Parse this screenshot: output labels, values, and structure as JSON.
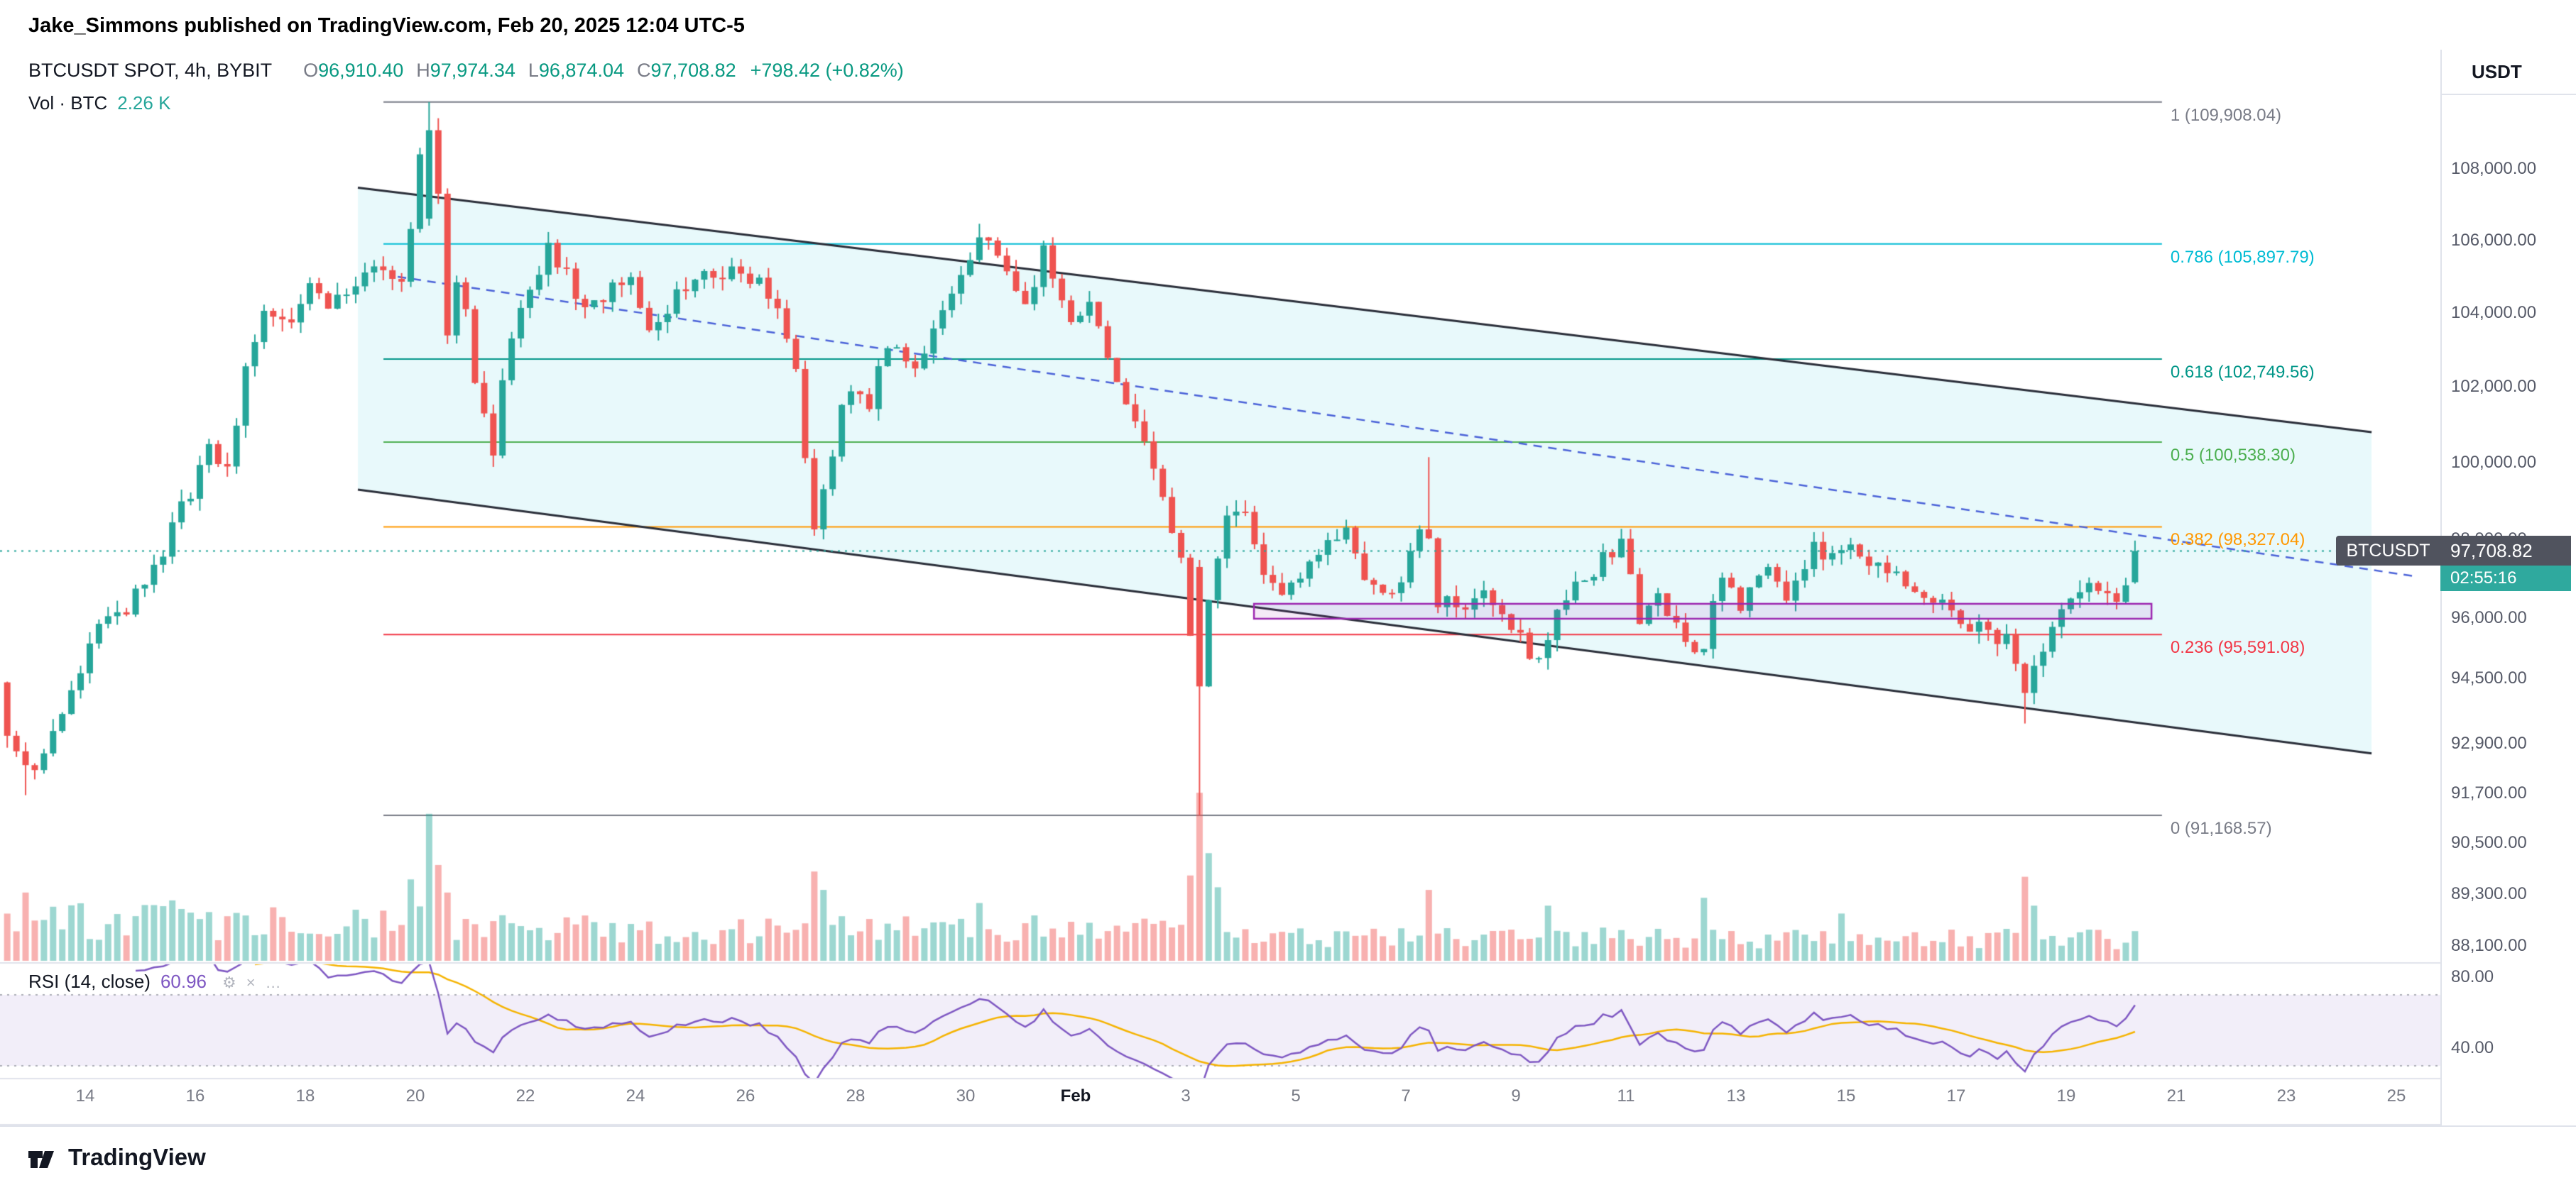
{
  "header": {
    "attribution": "Jake_Simmons published on TradingView.com, Feb 20, 2025 12:04 UTC-5"
  },
  "footer": {
    "brand": "TradingView"
  },
  "axis_panel": {
    "currency": "USDT"
  },
  "legend": {
    "symbol": "BTCUSDT SPOT, 4h, BYBIT",
    "ohlc": [
      {
        "k": "O",
        "v": "96,910.40"
      },
      {
        "k": "H",
        "v": "97,974.34"
      },
      {
        "k": "L",
        "v": "96,874.04"
      },
      {
        "k": "C",
        "v": "97,708.82"
      }
    ],
    "change": "+798.42 (+0.82%)",
    "volume_label": "Vol · BTC",
    "volume_value": "2.26 K"
  },
  "rsi_legend": {
    "label": "RSI (14, close)",
    "value": "60.96"
  },
  "price_badge": {
    "symbol": "BTCUSDT",
    "price": "97,708.82",
    "countdown": "02:55:16"
  },
  "chart_data": {
    "type": "candlestick",
    "symbol": "BTCUSDT",
    "market": "SPOT",
    "exchange": "BYBIT",
    "interval": "4h",
    "scale": "log",
    "last_candle": {
      "open": 96910.4,
      "high": 97974.34,
      "low": 96874.04,
      "close": 97708.82,
      "change": 798.42,
      "change_pct": 0.82
    },
    "last_volume_btc": 2260,
    "rsi_value": 60.96,
    "price_axis_ticks": [
      {
        "label": "108,000.00",
        "value": 108000
      },
      {
        "label": "106,000.00",
        "value": 106000
      },
      {
        "label": "104,000.00",
        "value": 104000
      },
      {
        "label": "102,000.00",
        "value": 102000
      },
      {
        "label": "100,000.00",
        "value": 100000
      },
      {
        "label": "98,000.00",
        "value": 98000
      },
      {
        "label": "96,000.00",
        "value": 96000
      },
      {
        "label": "94,500.00",
        "value": 94500
      },
      {
        "label": "92,900.00",
        "value": 92900
      },
      {
        "label": "91,700.00",
        "value": 91700
      },
      {
        "label": "90,500.00",
        "value": 90500
      },
      {
        "label": "89,300.00",
        "value": 89300
      },
      {
        "label": "88,100.00",
        "value": 88100
      }
    ],
    "rsi_axis_ticks": [
      {
        "label": "80.00",
        "value": 80
      },
      {
        "label": "40.00",
        "value": 40
      }
    ],
    "date_ticks": [
      {
        "label": "14",
        "day": 1
      },
      {
        "label": "16",
        "day": 3
      },
      {
        "label": "18",
        "day": 5
      },
      {
        "label": "20",
        "day": 7
      },
      {
        "label": "22",
        "day": 9
      },
      {
        "label": "24",
        "day": 11
      },
      {
        "label": "26",
        "day": 13
      },
      {
        "label": "28",
        "day": 15
      },
      {
        "label": "30",
        "day": 17
      },
      {
        "label": "Feb",
        "day": 19,
        "emphasis": true
      },
      {
        "label": "3",
        "day": 21
      },
      {
        "label": "5",
        "day": 23
      },
      {
        "label": "7",
        "day": 25
      },
      {
        "label": "9",
        "day": 27
      },
      {
        "label": "11",
        "day": 29
      },
      {
        "label": "13",
        "day": 31
      },
      {
        "label": "15",
        "day": 33
      },
      {
        "label": "17",
        "day": 35
      },
      {
        "label": "19",
        "day": 37
      },
      {
        "label": "21",
        "day": 39
      },
      {
        "label": "23",
        "day": 41
      },
      {
        "label": "25",
        "day": 43
      }
    ],
    "fib_levels": [
      {
        "label": "1 (109,908.04)",
        "ratio": 1,
        "price": 109908.04,
        "color": "#787b86"
      },
      {
        "label": "0.786 (105,897.79)",
        "ratio": 0.786,
        "price": 105897.79,
        "color": "#00bcd4"
      },
      {
        "label": "0.618 (102,749.56)",
        "ratio": 0.618,
        "price": 102749.56,
        "color": "#009688"
      },
      {
        "label": "0.5 (100,538.30)",
        "ratio": 0.5,
        "price": 100538.3,
        "color": "#4caf50"
      },
      {
        "label": "0.382 (98,327.04)",
        "ratio": 0.382,
        "price": 98327.04,
        "color": "#ff9800"
      },
      {
        "label": "0.236 (95,591.08)",
        "ratio": 0.236,
        "price": 95591.08,
        "color": "#f23645"
      },
      {
        "label": "0 (91,168.57)",
        "ratio": 0,
        "price": 91168.57,
        "color": "#787b86"
      }
    ],
    "close_anchors": [
      [
        -0.5,
        94400
      ],
      [
        -0.3,
        93100
      ],
      [
        -0.1,
        92500
      ],
      [
        0.1,
        92200
      ],
      [
        0.3,
        92700
      ],
      [
        0.6,
        93600
      ],
      [
        1,
        94600
      ],
      [
        1.4,
        96300
      ],
      [
        1.8,
        96100
      ],
      [
        2.2,
        97000
      ],
      [
        2.6,
        98000
      ],
      [
        3,
        99300
      ],
      [
        3.3,
        100400
      ],
      [
        3.6,
        99700
      ],
      [
        4,
        102300
      ],
      [
        4.4,
        104100
      ],
      [
        4.8,
        103500
      ],
      [
        5.2,
        104900
      ],
      [
        5.6,
        104200
      ],
      [
        6,
        104800
      ],
      [
        6.4,
        105500
      ],
      [
        6.8,
        104700
      ],
      [
        7.05,
        106400
      ],
      [
        7.2,
        109100
      ],
      [
        7.35,
        107300
      ],
      [
        7.6,
        102900
      ],
      [
        7.9,
        105100
      ],
      [
        8.2,
        101800
      ],
      [
        8.5,
        100400
      ],
      [
        8.8,
        103300
      ],
      [
        9.2,
        104700
      ],
      [
        9.5,
        105900
      ],
      [
        9.8,
        105100
      ],
      [
        10.2,
        103900
      ],
      [
        10.6,
        104700
      ],
      [
        11,
        105200
      ],
      [
        11.3,
        103500
      ],
      [
        11.7,
        104200
      ],
      [
        12,
        104800
      ],
      [
        12.5,
        105100
      ],
      [
        13,
        105300
      ],
      [
        13.6,
        104300
      ],
      [
        14,
        102400
      ],
      [
        14.3,
        98200
      ],
      [
        14.6,
        99900
      ],
      [
        14.9,
        101900
      ],
      [
        15.3,
        101400
      ],
      [
        15.7,
        103200
      ],
      [
        16.1,
        102400
      ],
      [
        16.5,
        103600
      ],
      [
        17,
        104900
      ],
      [
        17.4,
        106000
      ],
      [
        17.8,
        105100
      ],
      [
        18.2,
        104300
      ],
      [
        18.5,
        105800
      ],
      [
        18.9,
        103900
      ],
      [
        19.3,
        104200
      ],
      [
        19.7,
        102700
      ],
      [
        20.1,
        101200
      ],
      [
        20.6,
        99300
      ],
      [
        21,
        97500
      ],
      [
        21.25,
        94300
      ],
      [
        21.55,
        96900
      ],
      [
        21.85,
        98600
      ],
      [
        22.1,
        98800
      ],
      [
        22.45,
        97200
      ],
      [
        22.8,
        96500
      ],
      [
        23.2,
        96900
      ],
      [
        23.6,
        97800
      ],
      [
        24,
        98400
      ],
      [
        24.35,
        97100
      ],
      [
        24.7,
        96500
      ],
      [
        25.1,
        97300
      ],
      [
        25.4,
        98800
      ],
      [
        25.65,
        96400
      ],
      [
        26,
        96300
      ],
      [
        26.5,
        96700
      ],
      [
        27,
        95900
      ],
      [
        27.4,
        94900
      ],
      [
        27.8,
        95900
      ],
      [
        28.2,
        96800
      ],
      [
        28.6,
        97400
      ],
      [
        29,
        97800
      ],
      [
        29.35,
        95900
      ],
      [
        29.7,
        96500
      ],
      [
        30.1,
        95400
      ],
      [
        30.45,
        94900
      ],
      [
        30.8,
        97000
      ],
      [
        31.2,
        96300
      ],
      [
        31.6,
        97300
      ],
      [
        32,
        96600
      ],
      [
        32.5,
        97700
      ],
      [
        33,
        97800
      ],
      [
        33.5,
        97400
      ],
      [
        34,
        97100
      ],
      [
        34.5,
        96300
      ],
      [
        35,
        96200
      ],
      [
        35.5,
        95700
      ],
      [
        36,
        95500
      ],
      [
        36.35,
        94000
      ],
      [
        36.7,
        95400
      ],
      [
        37,
        96300
      ],
      [
        37.5,
        96800
      ],
      [
        38,
        96500
      ],
      [
        38.2,
        96910
      ],
      [
        38.35,
        97709
      ]
    ],
    "key_candles": [
      {
        "i": 2,
        "low": 91650
      },
      {
        "i": 46,
        "open": 106600,
        "close": 109100,
        "high": 109908.04
      },
      {
        "i": 47,
        "open": 109100,
        "close": 107300
      },
      {
        "i": 106,
        "high": 106457
      },
      {
        "i": 130,
        "open": 97300,
        "close": 94300,
        "low": 91168.57
      },
      {
        "i": 155,
        "high": 100140
      },
      {
        "i": 220,
        "low": 93388
      },
      {
        "i": 232,
        "open": 96910.4,
        "high": 97974.34,
        "low": 96874.04,
        "close": 97708.82
      }
    ],
    "volume_spikes": {
      "2": 5200,
      "18": 4600,
      "44": 6200,
      "46": 11200,
      "47": 7300,
      "48": 5200,
      "88": 6800,
      "89": 5400,
      "106": 4400,
      "129": 6500,
      "130": 12800,
      "131": 8200,
      "132": 5600,
      "155": 5400,
      "168": 4200,
      "185": 4800,
      "200": 3600,
      "220": 6400,
      "221": 4200,
      "232": 2260
    },
    "annotations": {
      "channel_upper": [
        [
          5.955,
          107470
        ],
        [
          42.55,
          100800
        ]
      ],
      "channel_lower": [
        [
          5.955,
          99290
        ],
        [
          42.55,
          92660
        ]
      ],
      "trendline_dashed": [
        [
          6.68,
          104990
        ],
        [
          43.32,
          97065
        ]
      ],
      "support_box": {
        "d1": 22.24,
        "d2": 38.55,
        "p1": 96364,
        "p2": 95988
      },
      "fib_extent": {
        "d1": 6.42,
        "d2": 38.74
      },
      "current_price_line": 97708.82,
      "rsi_band": [
        30,
        70
      ]
    },
    "colors": {
      "up": "#26a69a",
      "down": "#ef5350",
      "vol_up": "rgba(38,166,154,0.45)",
      "vol_down": "rgba(239,83,80,0.45)",
      "channel_line": "#2a2e39",
      "channel_fill": "rgba(0,188,212,0.09)",
      "trendline": "#4a62d8",
      "support_box": "#9c27b0",
      "support_box_fill": "rgba(156,39,176,0.10)",
      "price_line": "#26a69a",
      "rsi": "#7e57c2",
      "rsi_ma": "#f5b300",
      "rsi_band_fill": "rgba(126,87,194,0.10)",
      "rsi_band_line": "#9598a1",
      "divider": "#e0e3eb",
      "legend_value": "#089981"
    }
  }
}
